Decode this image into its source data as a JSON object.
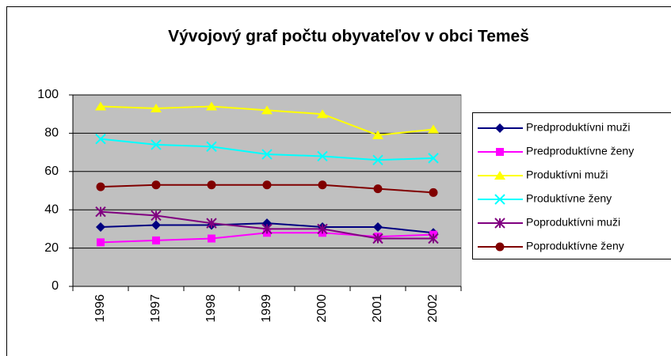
{
  "chart_data": {
    "type": "line",
    "title": "Vývojový graf počtu obyvateľov v obci Temeš",
    "categories": [
      "1996",
      "1997",
      "1998",
      "1999",
      "2000",
      "2001",
      "2002"
    ],
    "series": [
      {
        "name": "Predproduktívni muži",
        "color": "#000080",
        "marker": "diamond",
        "values": [
          31,
          32,
          32,
          33,
          31,
          31,
          28
        ]
      },
      {
        "name": "Predproduktívne ženy",
        "color": "#ff00ff",
        "marker": "square",
        "values": [
          23,
          24,
          25,
          28,
          28,
          26,
          27
        ]
      },
      {
        "name": "Produktívni muži",
        "color": "#ffff00",
        "marker": "triangle",
        "values": [
          94,
          93,
          94,
          92,
          90,
          79,
          82
        ]
      },
      {
        "name": "Produktívne ženy",
        "color": "#00ffff",
        "marker": "x",
        "values": [
          77,
          74,
          73,
          69,
          68,
          66,
          67
        ]
      },
      {
        "name": "Poproduktívni muži",
        "color": "#800080",
        "marker": "star",
        "values": [
          39,
          37,
          33,
          30,
          30,
          25,
          25
        ]
      },
      {
        "name": "Poproduktívne ženy",
        "color": "#800000",
        "marker": "circle",
        "values": [
          52,
          53,
          53,
          53,
          53,
          51,
          49
        ]
      }
    ],
    "ylim": [
      0,
      100
    ],
    "yticks": [
      0,
      20,
      40,
      60,
      80,
      100
    ],
    "grid": true,
    "legend": "right",
    "plot_background": "#c0c0c0"
  }
}
